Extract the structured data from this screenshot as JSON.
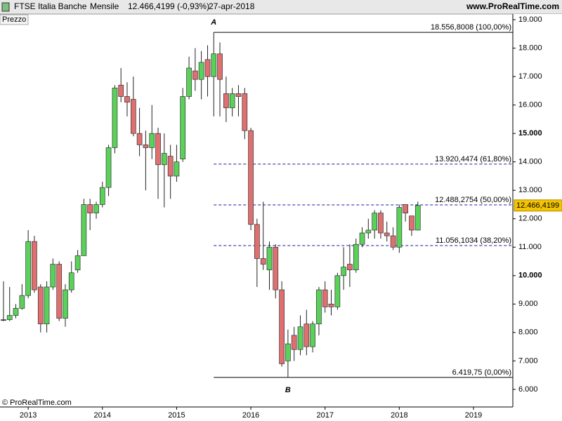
{
  "chart_data": {
    "type": "candlestick",
    "title": "FTSE Italia Banche",
    "period": "Mensile",
    "last": "12.466,4199 (-0,93%)",
    "date": "27-apr-2018",
    "source": "www.ProRealTime.com",
    "panel_label": "Prezzo",
    "copyright": "© ProRealTime.com",
    "up_color": "#5ad25a",
    "down_color": "#e07070",
    "x": [
      2012.667,
      2012.75,
      2012.833,
      2012.917,
      2013,
      2013.083,
      2013.167,
      2013.25,
      2013.333,
      2013.417,
      2013.5,
      2013.583,
      2013.667,
      2013.75,
      2013.833,
      2013.917,
      2014,
      2014.083,
      2014.167,
      2014.25,
      2014.333,
      2014.417,
      2014.5,
      2014.583,
      2014.667,
      2014.75,
      2014.833,
      2014.917,
      2015,
      2015.083,
      2015.167,
      2015.25,
      2015.333,
      2015.417,
      2015.5,
      2015.583,
      2015.667,
      2015.75,
      2015.833,
      2015.917,
      2016,
      2016.083,
      2016.167,
      2016.25,
      2016.333,
      2016.417,
      2016.5,
      2016.583,
      2016.667,
      2016.75,
      2016.833,
      2016.917,
      2017,
      2017.083,
      2017.167,
      2017.25,
      2017.333,
      2017.417,
      2017.5,
      2017.583,
      2017.667,
      2017.75,
      2017.833,
      2017.917,
      2018,
      2018.083,
      2018.167,
      2018.25
    ],
    "open": [
      8450,
      8450,
      8600,
      8850,
      9300,
      11200,
      9600,
      8300,
      9600,
      10400,
      8500,
      9500,
      10200,
      10700,
      12500,
      12200,
      12500,
      13100,
      14500,
      16700,
      16300,
      16200,
      15000,
      14600,
      14500,
      15000,
      13900,
      14200,
      13500,
      14100,
      16300,
      17200,
      16900,
      17600,
      17000,
      17800,
      16400,
      15900,
      16400,
      16400,
      15100,
      11800,
      10600,
      10200,
      11000,
      9500,
      7000,
      7900,
      7400,
      8300,
      7500,
      8300,
      9500,
      9000,
      8900,
      10000,
      10400,
      10200,
      11100,
      11500,
      11600,
      12200,
      11500,
      11400,
      11000,
      12500,
      12100,
      11600
    ],
    "high": [
      9800,
      9600,
      9000,
      9700,
      11600,
      11400,
      9700,
      9800,
      10600,
      10500,
      9700,
      10500,
      10900,
      12700,
      12700,
      12600,
      13300,
      14600,
      16700,
      17300,
      16800,
      17000,
      15900,
      15100,
      16000,
      15200,
      15000,
      14600,
      14600,
      16600,
      17700,
      18000,
      17900,
      18100,
      18556.8008,
      18200,
      17000,
      16600,
      16700,
      16600,
      15200,
      12000,
      12600,
      11200,
      11100,
      9800,
      8100,
      8200,
      8600,
      8800,
      8400,
      9600,
      9800,
      9500,
      10100,
      11000,
      11100,
      11300,
      11700,
      12000,
      12300,
      12300,
      11900,
      11700,
      12500,
      12500,
      12100,
      12600
    ],
    "low": [
      8400,
      8400,
      8500,
      8800,
      9200,
      9400,
      8000,
      8000,
      9500,
      8400,
      8200,
      9400,
      10100,
      10700,
      11600,
      12000,
      12400,
      12800,
      14300,
      16100,
      15600,
      14900,
      14200,
      13000,
      14100,
      12700,
      12400,
      12700,
      13300,
      14000,
      16200,
      16500,
      16200,
      16300,
      15600,
      15600,
      15400,
      15600,
      15600,
      14800,
      11600,
      9600,
      10200,
      9500,
      9200,
      6800,
      6419.75,
      7000,
      7200,
      7200,
      7300,
      7900,
      8700,
      8600,
      8800,
      9500,
      9600,
      10100,
      11000,
      11300,
      11300,
      11300,
      11200,
      10900,
      10800,
      11900,
      11400,
      11600
    ],
    "close": [
      8450,
      8600,
      8850,
      9300,
      11200,
      9500,
      8300,
      9600,
      10400,
      8500,
      9500,
      10100,
      10700,
      12500,
      12200,
      12500,
      13100,
      14500,
      16600,
      16300,
      16100,
      15000,
      14600,
      14500,
      15000,
      13900,
      14300,
      13500,
      14000,
      16300,
      17300,
      16900,
      17500,
      17000,
      17800,
      16900,
      15900,
      16400,
      16300,
      15100,
      11800,
      10600,
      10400,
      11000,
      9500,
      6900,
      7600,
      7400,
      8200,
      7500,
      8300,
      9500,
      8900,
      8900,
      10000,
      10300,
      10200,
      11100,
      11500,
      11600,
      12200,
      11500,
      11400,
      11000,
      12400,
      12200,
      11600,
      12466.4199
    ],
    "xlim": [
      2012.62,
      2019.53
    ],
    "ylim": [
      5380,
      19200
    ],
    "xticks": [
      2013,
      2014,
      2015,
      2016,
      2017,
      2018,
      2019
    ],
    "yticks": [
      {
        "value": 6000,
        "label": "6.000"
      },
      {
        "value": 7000,
        "label": "7.000"
      },
      {
        "value": 8000,
        "label": "8.000"
      },
      {
        "value": 9000,
        "label": "9.000"
      },
      {
        "value": 10000,
        "label": "10.000"
      },
      {
        "value": 11000,
        "label": "11.000"
      },
      {
        "value": 12000,
        "label": "12.000"
      },
      {
        "value": 13000,
        "label": "13.000"
      },
      {
        "value": 14000,
        "label": "14.000"
      },
      {
        "value": 15000,
        "label": "15.000"
      },
      {
        "value": 16000,
        "label": "16.000"
      },
      {
        "value": 17000,
        "label": "17.000"
      },
      {
        "value": 18000,
        "label": "18.000"
      },
      {
        "value": 19000,
        "label": "19.000"
      }
    ],
    "bold_yticks": [
      10000,
      15000
    ],
    "levels": [
      {
        "value": 18556.8008,
        "label": "18.556,8008 (100,00%)",
        "style": "solid",
        "color": "#000000"
      },
      {
        "value": 13920.4474,
        "label": "13.920,4474 (61,80%)",
        "style": "dashed",
        "color": "#1a1aa0"
      },
      {
        "value": 12488.2754,
        "label": "12.488,2754 (50,00%)",
        "style": "dashed",
        "color": "#1a1aa0"
      },
      {
        "value": 11056.1034,
        "label": "11.056,1034 (38,20%)",
        "style": "dashed",
        "color": "#1a1aa0"
      },
      {
        "value": 6419.75,
        "label": "6.419,75 (0,00%)",
        "style": "solid",
        "color": "#000000"
      }
    ],
    "annotations": [
      {
        "text": "A",
        "x": 2015.5,
        "y": 18556.8008
      },
      {
        "text": "B",
        "x": 2016.5,
        "y": 6419.75
      }
    ],
    "last_price": {
      "value": 12466.4199,
      "label": "12.466,4199"
    }
  }
}
